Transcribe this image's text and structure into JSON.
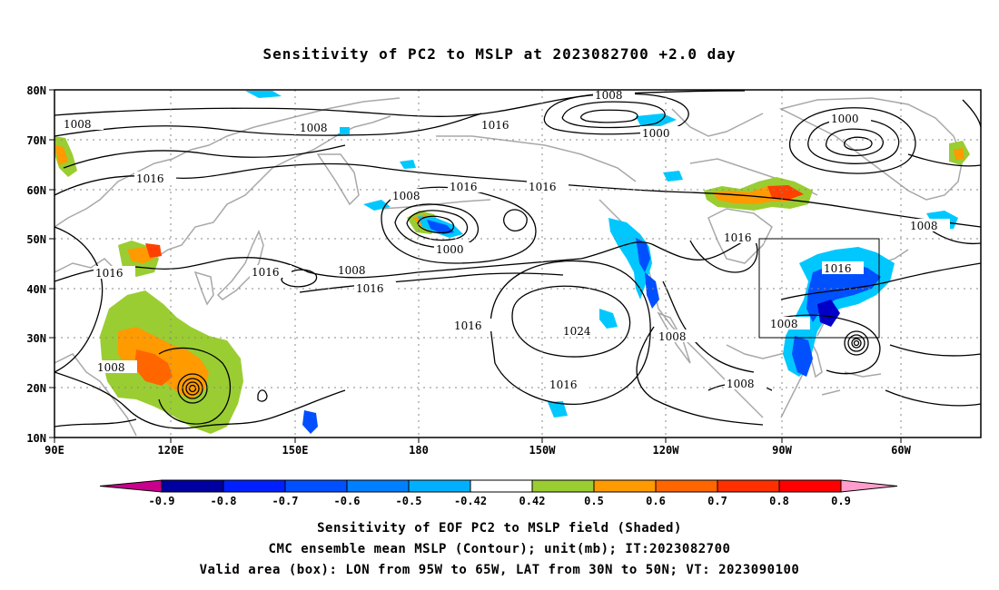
{
  "title": "Sensitivity of PC2 to MSLP at 2023082700 +2.0 day",
  "map": {
    "lon_ticks": [
      "90E",
      "120E",
      "150E",
      "180",
      "150W",
      "120W",
      "90W",
      "60W"
    ],
    "lat_ticks": [
      "80N",
      "70N",
      "60N",
      "50N",
      "40N",
      "30N",
      "20N",
      "10N"
    ],
    "contour_labels": [
      "1008",
      "1008",
      "1016",
      "1008",
      "1016",
      "1016",
      "1016",
      "1008",
      "1000",
      "1008",
      "1016",
      "1016",
      "1000",
      "1024",
      "1008",
      "1016",
      "1016",
      "1008",
      "1016",
      "1008",
      "1000",
      "1008",
      "1016"
    ],
    "valid_box": {
      "lon_from": "95W",
      "lon_to": "65W",
      "lat_from": "30N",
      "lat_to": "50N"
    },
    "colors": {
      "neg_strong": "#0000c8",
      "neg_mid": "#0050ff",
      "neg_light": "#00c8ff",
      "pos_light": "#9acd32",
      "pos_mid": "#ff9a00",
      "pos_strong": "#ff4000",
      "land": "#a8a8a8",
      "contour": "#000000"
    }
  },
  "colorbar": {
    "labels": [
      "-0.9",
      "-0.8",
      "-0.7",
      "-0.6",
      "-0.5",
      "-0.42",
      "0.42",
      "0.5",
      "0.6",
      "0.7",
      "0.8",
      "0.9"
    ],
    "colors": [
      "#0000a0",
      "#0020ff",
      "#0050ff",
      "#0080ff",
      "#00b0ff",
      "#ffffff",
      "#9acd32",
      "#ff9a00",
      "#ff6600",
      "#ff3000",
      "#ff0000"
    ],
    "end_low": "#c8008c",
    "end_high": "#ff9ecd"
  },
  "caption": {
    "line1": "Sensitivity of EOF PC2 to MSLP field (Shaded)",
    "line2": "CMC ensemble mean MSLP (Contour); unit(mb); IT:2023082700",
    "line3": "Valid area (box): LON from 95W to 65W, LAT from 30N to 50N; VT: 2023090100"
  }
}
